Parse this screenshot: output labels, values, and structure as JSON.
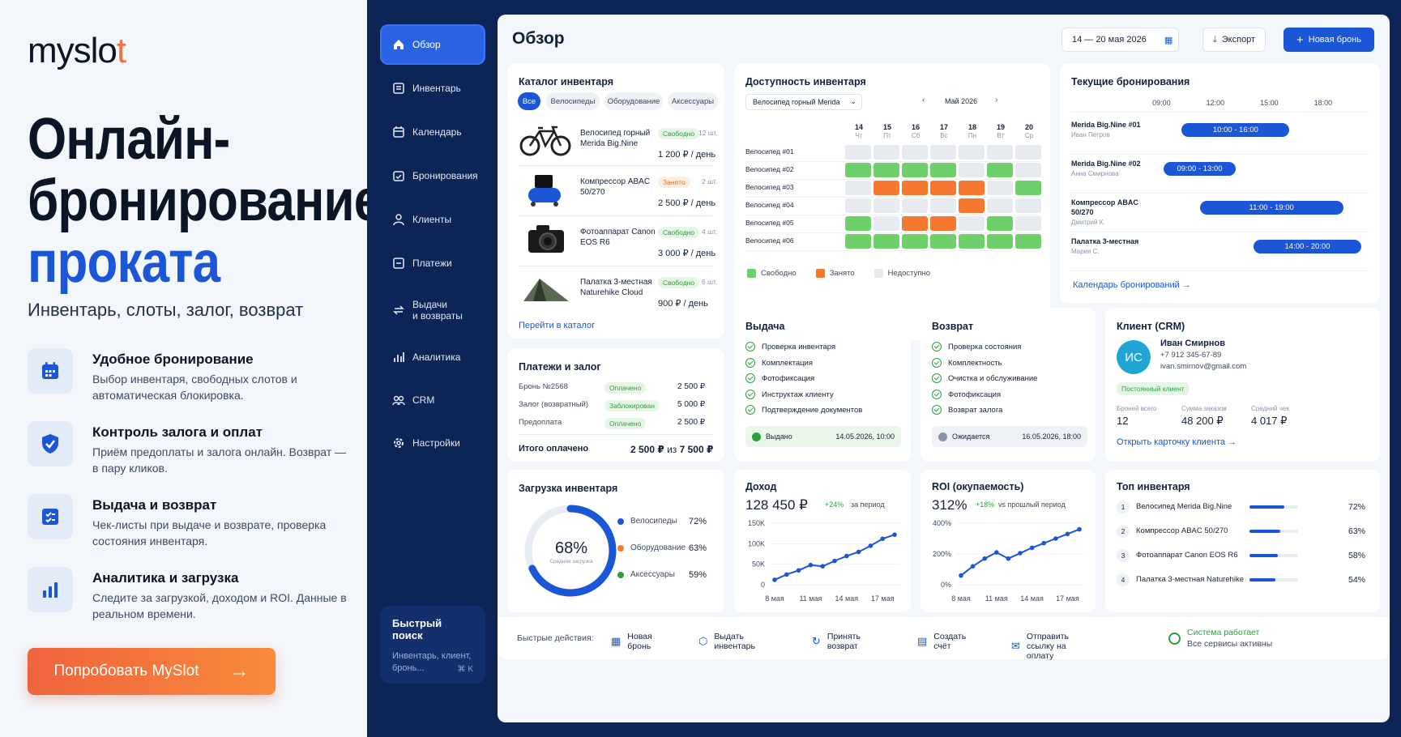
{
  "brand": {
    "logo_a": "myslo",
    "logo_dot": "t"
  },
  "hero": {
    "line1": "Онлайн-",
    "line2": "бронирование",
    "line3": "проката",
    "subtitle": "Инвентарь, слоты, залог, возврат"
  },
  "features": [
    {
      "icon": "calendar-icon",
      "title": "Удобное бронирование",
      "desc": "Выбор инвентаря, свободных слотов и автоматическая блокировка."
    },
    {
      "icon": "shield-check-icon",
      "title": "Контроль залога и оплат",
      "desc": "Приём предоплаты и залога онлайн. Возврат — в пару кликов."
    },
    {
      "icon": "checklist-icon",
      "title": "Выдача и возврат",
      "desc": "Чек-листы при выдаче и возврате, проверка состояния инвентаря."
    },
    {
      "icon": "bar-chart-icon",
      "title": "Аналитика и загрузка",
      "desc": "Следите за загрузкой, доходом и ROI. Данные в реальном времени."
    }
  ],
  "cta": {
    "label": "Попробовать MySlot"
  },
  "nav": [
    {
      "label": "Обзор",
      "icon": "home-icon"
    },
    {
      "label": "Инвентарь",
      "icon": "inventory-icon"
    },
    {
      "label": "Календарь",
      "icon": "calendar-icon"
    },
    {
      "label": "Бронирования",
      "icon": "booking-icon"
    },
    {
      "label": "Клиенты",
      "icon": "user-icon"
    },
    {
      "label": "Платежи",
      "icon": "payment-icon"
    },
    {
      "label": "Выдачи\nи возвраты",
      "icon": "swap-icon"
    },
    {
      "label": "Аналитика",
      "icon": "analytics-icon"
    },
    {
      "label": "CRM",
      "icon": "crm-icon"
    },
    {
      "label": "Настройки",
      "icon": "gear-icon"
    }
  ],
  "quick_search": {
    "title": "Быстрый поиск",
    "placeholder": "Инвентарь, клиент, бронь...",
    "shortcut": "⌘ K"
  },
  "header": {
    "title": "Обзор",
    "date_range": "14 — 20 мая 2026",
    "export": "Экспорт",
    "new_booking": "Новая бронь"
  },
  "catalog": {
    "title": "Каталог инвентаря",
    "filters": [
      "Все",
      "Велосипеды",
      "Оборудование",
      "Аксессуары"
    ],
    "items": [
      {
        "name": "Велосипед горный Merida Big.Nine",
        "status": "Свободно",
        "qty": "12 шт.",
        "price": "1 200 ₽ / день",
        "status_color": "green"
      },
      {
        "name": "Компрессор ABAC 50/270",
        "status": "Занято",
        "qty": "2 шт.",
        "price": "2 500 ₽ / день",
        "status_color": "orange"
      },
      {
        "name": "Фотоаппарат Canon EOS R6",
        "status": "Свободно",
        "qty": "4 шт.",
        "price": "3 000 ₽ / день",
        "status_color": "green"
      },
      {
        "name": "Палатка 3-местная Naturehike Cloud",
        "status": "Свободно",
        "qty": "6 шт.",
        "price": "900 ₽ / день",
        "status_color": "green"
      }
    ],
    "link": "Перейти в каталог"
  },
  "availability": {
    "title": "Доступность инвентаря",
    "select": "Велосипед горный Merida",
    "month": "Май 2026",
    "days": [
      {
        "d": "14",
        "w": "Чт"
      },
      {
        "d": "15",
        "w": "Пт"
      },
      {
        "d": "16",
        "w": "Сб"
      },
      {
        "d": "17",
        "w": "Вс"
      },
      {
        "d": "18",
        "w": "Пн"
      },
      {
        "d": "19",
        "w": "Вт"
      },
      {
        "d": "20",
        "w": "Ср"
      }
    ],
    "rows": [
      {
        "label": "Велосипед #01",
        "cells": [
          "n",
          "n",
          "n",
          "n",
          "n",
          "n",
          "n"
        ]
      },
      {
        "label": "Велосипед #02",
        "cells": [
          "f",
          "f",
          "f",
          "f",
          "n",
          "f",
          "n"
        ]
      },
      {
        "label": "Велосипед #03",
        "cells": [
          "n",
          "b",
          "b",
          "b",
          "b",
          "n",
          "f"
        ]
      },
      {
        "label": "Велосипед #04",
        "cells": [
          "n",
          "n",
          "n",
          "n",
          "b",
          "n",
          "n"
        ]
      },
      {
        "label": "Велосипед #05",
        "cells": [
          "f",
          "n",
          "b",
          "b",
          "n",
          "f",
          "n"
        ]
      },
      {
        "label": "Велосипед #06",
        "cells": [
          "f",
          "f",
          "f",
          "f",
          "f",
          "f",
          "f"
        ]
      }
    ],
    "legend": [
      "Свободно",
      "Занято",
      "Недоступно"
    ],
    "colors": {
      "free": "#6fcf6a",
      "busy": "#f5782e",
      "na": "#e7eaef"
    }
  },
  "bookings": {
    "title": "Текущие бронирования",
    "times": [
      "09:00",
      "12:00",
      "15:00",
      "18:00"
    ],
    "items": [
      {
        "item": "Merida Big.Nine #01",
        "client": "Иван Петров",
        "slot": "10:00 - 16:00",
        "start": 10,
        "end": 16
      },
      {
        "item": "Merida Big.Nine #02",
        "client": "Анна Смирнова",
        "slot": "09:00 - 13:00",
        "start": 9,
        "end": 13
      },
      {
        "item": "Компрессор ABAC 50/270",
        "client": "Дмитрий К.",
        "slot": "11:00 - 19:00",
        "start": 11,
        "end": 19
      },
      {
        "item": "Палатка 3-местная",
        "client": "Мария С.",
        "slot": "14:00 - 20:00",
        "start": 14,
        "end": 20
      }
    ],
    "link": "Календарь бронирований"
  },
  "payments": {
    "title": "Платежи и залог",
    "rows": [
      {
        "label": "Бронь №2568",
        "status": "Оплачено",
        "amount": "2 500 ₽",
        "color": "green"
      },
      {
        "label": "Залог (возвратный)",
        "status": "Заблокирован",
        "amount": "5 000 ₽",
        "color": "green"
      },
      {
        "label": "Предоплата",
        "status": "Оплачено",
        "amount": "2 500 ₽",
        "color": "green"
      }
    ],
    "total_label": "Итого оплачено",
    "total_value": "2 500 ₽",
    "total_of": "из",
    "total_full": "7 500 ₽"
  },
  "issue": {
    "title": "Выдача",
    "checks": [
      "Проверка инвентаря",
      "Комплектация",
      "Фотофиксация",
      "Инструктаж клиенту",
      "Подтверждение документов"
    ],
    "status": "Выдано",
    "date": "14.05.2026, 10:00"
  },
  "return": {
    "title": "Возврат",
    "checks": [
      "Проверка состояния",
      "Комплектность",
      "Очистка и обслуживание",
      "Фотофиксация",
      "Возврат залога"
    ],
    "status": "Ожидается",
    "date": "16.05.2026, 18:00"
  },
  "client": {
    "title": "Клиент (CRM)",
    "initials": "ИС",
    "name": "Иван Смирнов",
    "phone": "+7 912 345-67-89",
    "email": "ivan.smirnov@gmail.com",
    "tag": "Постоянный клиент",
    "stats": [
      {
        "label": "Броней всего",
        "value": "12"
      },
      {
        "label": "Сумма заказов",
        "value": "48 200 ₽"
      },
      {
        "label": "Средний чек",
        "value": "4 017 ₽"
      }
    ],
    "link": "Открыть карточку клиента"
  },
  "load": {
    "title": "Загрузка инвентаря",
    "value": "68%",
    "caption": "Средняя загрузка",
    "fraction": 0.68,
    "legend": [
      {
        "name": "Велосипеды",
        "value": "72%",
        "color": "#1b56d6"
      },
      {
        "name": "Оборудование",
        "value": "63%",
        "color": "#f5782e"
      },
      {
        "name": "Аксессуары",
        "value": "59%",
        "color": "#2aa13a"
      }
    ]
  },
  "income": {
    "title": "Доход",
    "value": "128 450 ₽",
    "delta": "+24%",
    "delta_note": "за период"
  },
  "roi": {
    "title": "ROI (окупаемость)",
    "value": "312%",
    "delta": "+18%",
    "delta_note": "vs прошлый период"
  },
  "top": {
    "title": "Топ инвентаря",
    "items": [
      {
        "n": "1",
        "name": "Велосипед Merida Big.Nine",
        "value": "72%",
        "fraction": 0.72
      },
      {
        "n": "2",
        "name": "Компрессор ABAC 50/270",
        "value": "63%",
        "fraction": 0.63
      },
      {
        "n": "3",
        "name": "Фотоаппарат Canon EOS R6",
        "value": "58%",
        "fraction": 0.58
      },
      {
        "n": "4",
        "name": "Палатка 3-местная Naturehike",
        "value": "54%",
        "fraction": 0.54
      }
    ]
  },
  "actions": {
    "label": "Быстрые действия:",
    "items": [
      "Новая бронь",
      "Выдать инвентарь",
      "Принять возврат",
      "Создать счёт",
      "Отправить ссылку на оплату"
    ],
    "system": "Система работает",
    "system_sub": "Все сервисы активны"
  },
  "chart_data": [
    {
      "type": "line",
      "title": "Доход",
      "categories": [
        "8 мая",
        "11 мая",
        "14 мая",
        "17 мая"
      ],
      "x": [
        "8 мая",
        "",
        "",
        "11 мая",
        "",
        "",
        "14 мая",
        "",
        "",
        "17 мая",
        ""
      ],
      "values": [
        12,
        25,
        35,
        48,
        45,
        58,
        70,
        80,
        95,
        112,
        122
      ],
      "yticks": [
        "150K",
        "100K",
        "50K",
        "0"
      ],
      "ylim": [
        0,
        150
      ]
    },
    {
      "type": "line",
      "title": "ROI (окупаемость)",
      "categories": [
        "8 мая",
        "11 мая",
        "14 мая",
        "17 мая"
      ],
      "x": [
        "8 мая",
        "",
        "",
        "11 мая",
        "",
        "",
        "14 мая",
        "",
        "",
        "17 мая",
        ""
      ],
      "values": [
        60,
        120,
        170,
        210,
        170,
        205,
        240,
        270,
        300,
        330,
        360
      ],
      "yticks": [
        "400%",
        "200%",
        "0%"
      ],
      "ylim": [
        0,
        400
      ]
    }
  ]
}
